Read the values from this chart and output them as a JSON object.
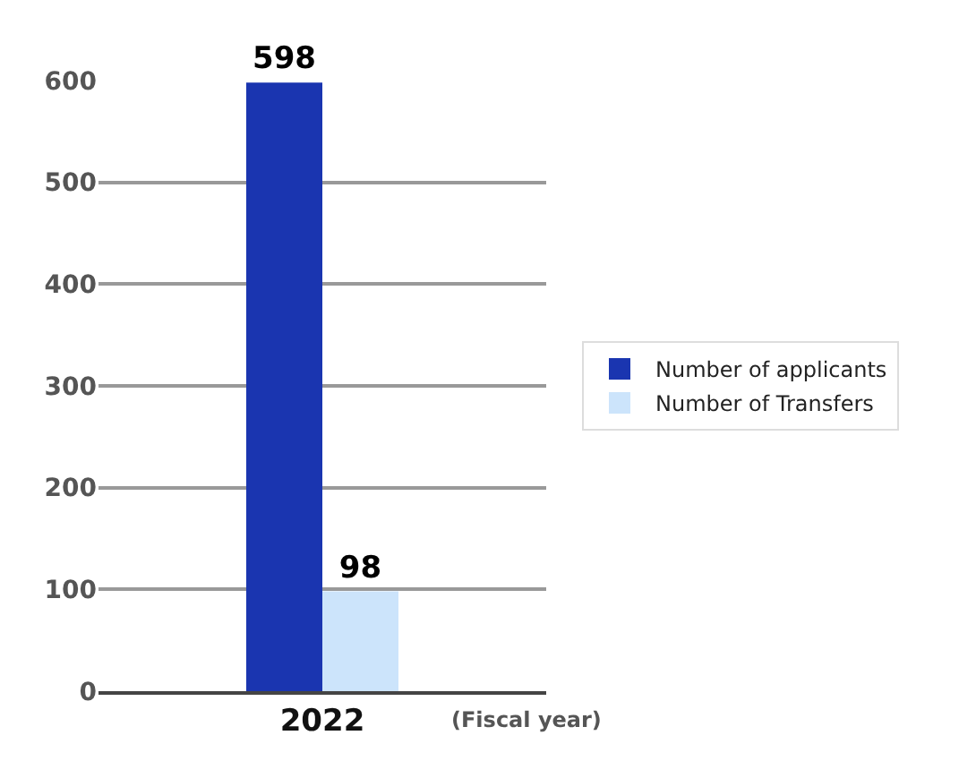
{
  "chart_data": {
    "type": "bar",
    "categories": [
      "2022"
    ],
    "xlabel": "(Fiscal year)",
    "series": [
      {
        "name": "Number of applicants",
        "color": "#1a35b0",
        "values": [
          598
        ]
      },
      {
        "name": "Number of Transfers",
        "color": "#cce4fb",
        "values": [
          98
        ]
      }
    ],
    "ylim": [
      0,
      600
    ],
    "yticks": [
      0,
      100,
      200,
      300,
      400,
      500,
      600
    ],
    "grid": "y",
    "legend": "right",
    "data_labels": true
  }
}
